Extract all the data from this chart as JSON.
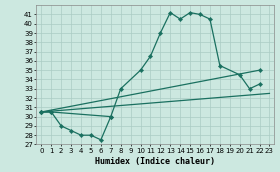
{
  "xlabel": "Humidex (Indice chaleur)",
  "bg_color": "#cce8e0",
  "grid_color": "#aaccc4",
  "line_color": "#1a7060",
  "xlim": [
    -0.5,
    23.5
  ],
  "ylim": [
    27,
    42
  ],
  "yticks": [
    27,
    28,
    29,
    30,
    31,
    32,
    33,
    34,
    35,
    36,
    37,
    38,
    39,
    40,
    41
  ],
  "xticks": [
    0,
    1,
    2,
    3,
    4,
    5,
    6,
    7,
    8,
    9,
    10,
    11,
    12,
    13,
    14,
    15,
    16,
    17,
    18,
    19,
    20,
    21,
    22,
    23
  ],
  "curve1_x": [
    0,
    1,
    2,
    3,
    4,
    5,
    6,
    7
  ],
  "curve1_y": [
    30.5,
    30.5,
    29.0,
    28.5,
    28.0,
    28.0,
    27.5,
    30.0
  ],
  "curve2_x": [
    0,
    1,
    7,
    8,
    10,
    11,
    12,
    13,
    14,
    15,
    16,
    17,
    18,
    20,
    21,
    22
  ],
  "curve2_y": [
    30.5,
    30.5,
    30.0,
    33.0,
    35.0,
    36.5,
    39.0,
    41.2,
    40.5,
    41.2,
    41.0,
    40.5,
    35.5,
    34.5,
    33.0,
    33.5
  ],
  "line1_x": [
    0,
    22
  ],
  "line1_y": [
    30.5,
    35.0
  ],
  "line2_x": [
    0,
    23
  ],
  "line2_y": [
    30.5,
    32.5
  ],
  "end_marker_x": [
    22
  ],
  "end_marker_y": [
    33.5
  ]
}
